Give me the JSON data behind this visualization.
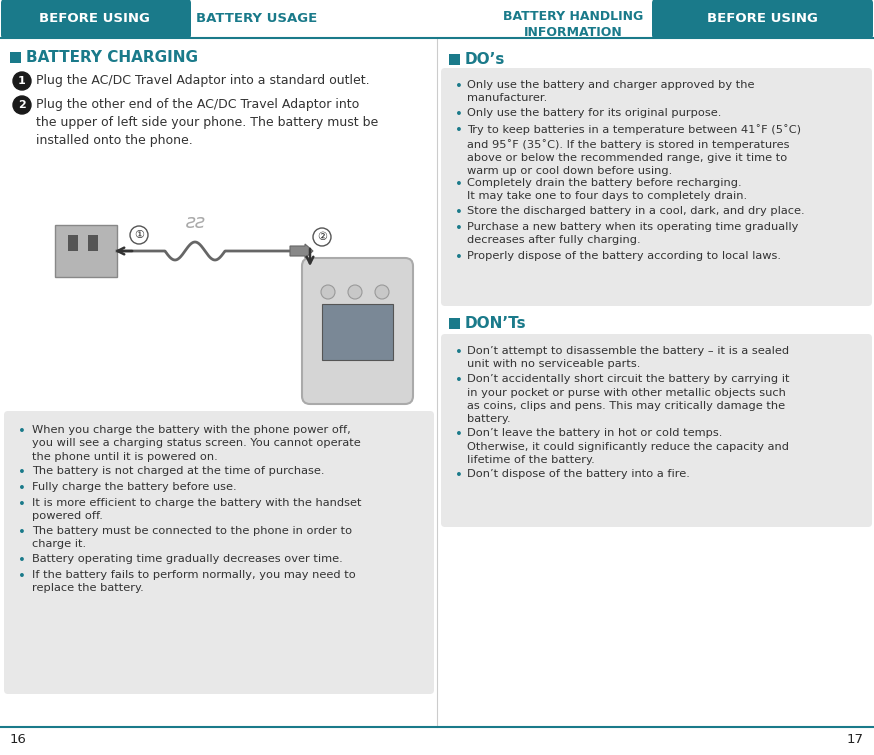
{
  "bg_color": "#ffffff",
  "teal_color": "#1a7a8a",
  "header_text": "#ffffff",
  "bullet_box_bg": "#e8e8e8",
  "text_color": "#333333",
  "bullet_color": "#1a7a8a",
  "left_header_tab": "BEFORE USING",
  "left_header_title": "BATTERY USAGE",
  "right_header_text": "BATTERY HANDLING\nINFORMATION",
  "right_header_tab": "BEFORE USING",
  "section_charging": "BATTERY CHARGING",
  "step1": "Plug the AC/DC Travel Adaptor into a standard outlet.",
  "step2": "Plug the other end of the AC/DC Travel Adaptor into\nthe upper of left side your phone. The battery must be\ninstalled onto the phone.",
  "bullets_left": [
    "When you charge the battery with the phone power off,\nyou will see a charging status screen. You cannot operate\nthe phone until it is powered on.",
    "The battery is not charged at the time of purchase.",
    "Fully charge the battery before use.",
    "It is more efficient to charge the battery with the handset\npowered off.",
    "The battery must be connected to the phone in order to\ncharge it.",
    "Battery operating time gradually decreases over time.",
    "If the battery fails to perform normally, you may need to\nreplace the battery."
  ],
  "section_dos": "DO’s",
  "bullets_dos": [
    "Only use the battery and charger approved by the\nmanufacturer.",
    "Only use the battery for its original purpose.",
    "Try to keep batteries in a temperature between 41˚F (5˚C)\nand 95˚F (35˚C). If the battery is stored in temperatures\nabove or below the recommended range, give it time to\nwarm up or cool down before using.",
    "Completely drain the battery before recharging.\nIt may take one to four days to completely drain.",
    "Store the discharged battery in a cool, dark, and dry place.",
    "Purchase a new battery when its operating time gradually\ndecreases after fully charging.",
    "Properly dispose of the battery according to local laws."
  ],
  "section_donts": "DON’Ts",
  "bullets_donts": [
    "Don’t attempt to disassemble the battery – it is a sealed\nunit with no serviceable parts.",
    "Don’t accidentally short circuit the battery by carrying it\nin your pocket or purse with other metallic objects such\nas coins, clips and pens. This may critically damage the\nbattery.",
    "Don’t leave the battery in hot or cold temps.\nOtherwise, it could significantly reduce the capacity and\nlifetime of the battery.",
    "Don’t dispose of the battery into a fire."
  ],
  "page_left": "16",
  "page_right": "17"
}
